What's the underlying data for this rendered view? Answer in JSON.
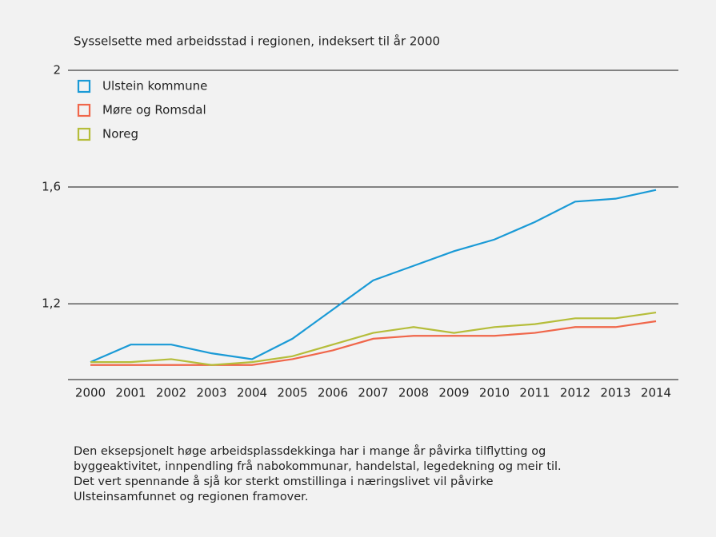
{
  "chart_data": {
    "type": "line",
    "title": "Sysselsette med arbeidsstad i regionen, indeksert til år 2000",
    "categories": [
      "2000",
      "2001",
      "2002",
      "2003",
      "2004",
      "2005",
      "2006",
      "2007",
      "2008",
      "2009",
      "2010",
      "2011",
      "2012",
      "2013",
      "2014"
    ],
    "series": [
      {
        "name": "Ulstein kommune",
        "color": "#1a9ad6",
        "values": [
          1.0,
          1.06,
          1.06,
          1.03,
          1.01,
          1.08,
          1.18,
          1.28,
          1.33,
          1.38,
          1.42,
          1.48,
          1.55,
          1.56,
          1.59
        ]
      },
      {
        "name": "Møre og Romsdal",
        "color": "#f0664a",
        "values": [
          0.99,
          0.99,
          0.99,
          0.99,
          0.99,
          1.01,
          1.04,
          1.08,
          1.09,
          1.09,
          1.09,
          1.1,
          1.12,
          1.12,
          1.14
        ]
      },
      {
        "name": "Noreg",
        "color": "#b5bd3a",
        "values": [
          1.0,
          1.0,
          1.01,
          0.99,
          1.0,
          1.02,
          1.06,
          1.1,
          1.12,
          1.1,
          1.12,
          1.13,
          1.15,
          1.15,
          1.17
        ]
      }
    ],
    "ylim": [
      0.94,
      2
    ],
    "yticks": [
      {
        "value": 1.2,
        "label": "1,2"
      },
      {
        "value": 1.6,
        "label": "1,6"
      },
      2
    ],
    "grid": true,
    "legend": "top-left",
    "caption": "Den eksepsjonelt høge arbeidsplassdekkinga har i mange år påvirka tilflytting og byggeaktivitet, innpendling frå nabokommunar, handelstal, legedekning og meir til. Det vert spennande å sjå kor sterkt omstillinga i næringslivet vil påvirke Ulsteinsamfunnet og regionen framover."
  }
}
